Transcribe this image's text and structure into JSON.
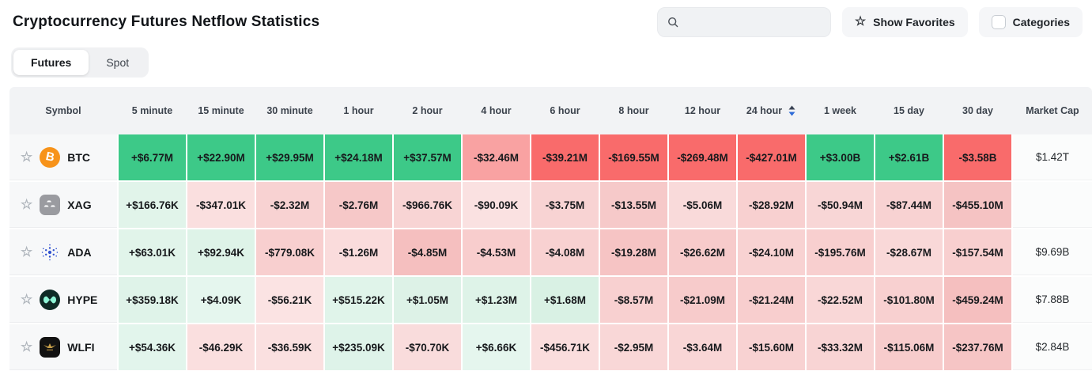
{
  "page": {
    "title": "Cryptocurrency Futures Netflow Statistics"
  },
  "controls": {
    "search": {
      "placeholder": "",
      "value": ""
    },
    "show_favorites_label": "Show Favorites",
    "categories_label": "Categories"
  },
  "tabs": [
    {
      "label": "Futures",
      "active": true
    },
    {
      "label": "Spot",
      "active": false
    }
  ],
  "table": {
    "columns": [
      "Symbol",
      "5 minute",
      "15 minute",
      "30 minute",
      "1 hour",
      "2 hour",
      "4 hour",
      "6 hour",
      "8 hour",
      "12 hour",
      "24 hour",
      "1 week",
      "15 day",
      "30 day",
      "Market Cap"
    ],
    "sorted_column": "24 hour",
    "sort_direction": "desc",
    "sort_icon_colors": {
      "up": "#3a4254",
      "down": "#2e6bd8"
    },
    "rows": [
      {
        "symbol": "BTC",
        "icon": "btc",
        "market_cap": "$1.42T",
        "cells": [
          {
            "v": "+$6.77M",
            "bg": "#3dc988"
          },
          {
            "v": "+$22.90M",
            "bg": "#3dc988"
          },
          {
            "v": "+$29.95M",
            "bg": "#3dc988"
          },
          {
            "v": "+$24.18M",
            "bg": "#3dc988"
          },
          {
            "v": "+$37.57M",
            "bg": "#3dc988"
          },
          {
            "v": "-$32.46M",
            "bg": "#f9a2a2"
          },
          {
            "v": "-$39.21M",
            "bg": "#f96b6b"
          },
          {
            "v": "-$169.55M",
            "bg": "#f96b6b"
          },
          {
            "v": "-$269.48M",
            "bg": "#f96b6b"
          },
          {
            "v": "-$427.01M",
            "bg": "#f96b6b"
          },
          {
            "v": "+$3.00B",
            "bg": "#3dc988"
          },
          {
            "v": "+$2.61B",
            "bg": "#3dc988"
          },
          {
            "v": "-$3.58B",
            "bg": "#f96b6b"
          }
        ]
      },
      {
        "symbol": "XAG",
        "icon": "xag",
        "market_cap": "",
        "cells": [
          {
            "v": "+$166.76K",
            "bg": "#e1f4ea"
          },
          {
            "v": "-$347.01K",
            "bg": "#fadfdf"
          },
          {
            "v": "-$2.32M",
            "bg": "#f8d2d2"
          },
          {
            "v": "-$2.76M",
            "bg": "#f6c8c8"
          },
          {
            "v": "-$966.76K",
            "bg": "#f8d4d4"
          },
          {
            "v": "-$90.09K",
            "bg": "#fae1e1"
          },
          {
            "v": "-$3.75M",
            "bg": "#f8d3d3"
          },
          {
            "v": "-$13.55M",
            "bg": "#f6c9c9"
          },
          {
            "v": "-$5.06M",
            "bg": "#f9dada"
          },
          {
            "v": "-$28.92M",
            "bg": "#f8d0d0"
          },
          {
            "v": "-$50.94M",
            "bg": "#f8d6d6"
          },
          {
            "v": "-$87.44M",
            "bg": "#f8d2d2"
          },
          {
            "v": "-$455.10M",
            "bg": "#f5c3c3"
          }
        ]
      },
      {
        "symbol": "ADA",
        "icon": "ada",
        "market_cap": "$9.69B",
        "cells": [
          {
            "v": "+$63.01K",
            "bg": "#e1f4ea"
          },
          {
            "v": "+$92.94K",
            "bg": "#def3e8"
          },
          {
            "v": "-$779.08K",
            "bg": "#f8cfcf"
          },
          {
            "v": "-$1.26M",
            "bg": "#fadcdc"
          },
          {
            "v": "-$4.85M",
            "bg": "#f5bfbf"
          },
          {
            "v": "-$4.53M",
            "bg": "#f8cdcd"
          },
          {
            "v": "-$4.08M",
            "bg": "#f8d1d1"
          },
          {
            "v": "-$19.28M",
            "bg": "#f6c4c4"
          },
          {
            "v": "-$26.62M",
            "bg": "#f7cbcb"
          },
          {
            "v": "-$24.10M",
            "bg": "#f8d2d2"
          },
          {
            "v": "-$195.76M",
            "bg": "#f8cfcf"
          },
          {
            "v": "-$28.67M",
            "bg": "#f9d8d8"
          },
          {
            "v": "-$157.54M",
            "bg": "#f8cfcf"
          }
        ]
      },
      {
        "symbol": "HYPE",
        "icon": "hype",
        "market_cap": "$7.88B",
        "cells": [
          {
            "v": "+$359.18K",
            "bg": "#dff3e9"
          },
          {
            "v": "+$4.09K",
            "bg": "#e5f6ee"
          },
          {
            "v": "-$56.21K",
            "bg": "#fbe3e3"
          },
          {
            "v": "+$515.22K",
            "bg": "#e0f4ea"
          },
          {
            "v": "+$1.05M",
            "bg": "#ddf2e7"
          },
          {
            "v": "+$1.23M",
            "bg": "#def3e8"
          },
          {
            "v": "+$1.68M",
            "bg": "#d9f1e4"
          },
          {
            "v": "-$8.57M",
            "bg": "#f8d0d0"
          },
          {
            "v": "-$21.09M",
            "bg": "#f7cbcb"
          },
          {
            "v": "-$21.24M",
            "bg": "#f8cece"
          },
          {
            "v": "-$22.52M",
            "bg": "#f9d7d7"
          },
          {
            "v": "-$101.80M",
            "bg": "#f8d0d0"
          },
          {
            "v": "-$459.24M",
            "bg": "#f5bfbf"
          }
        ]
      },
      {
        "symbol": "WLFI",
        "icon": "wlfi",
        "market_cap": "$2.84B",
        "cells": [
          {
            "v": "+$54.36K",
            "bg": "#e2f5ec"
          },
          {
            "v": "-$46.29K",
            "bg": "#fadfdf"
          },
          {
            "v": "-$36.59K",
            "bg": "#fae0e0"
          },
          {
            "v": "+$235.09K",
            "bg": "#def3e9"
          },
          {
            "v": "-$70.70K",
            "bg": "#f9dcdc"
          },
          {
            "v": "+$6.66K",
            "bg": "#e5f6ee"
          },
          {
            "v": "-$456.71K",
            "bg": "#fadddd"
          },
          {
            "v": "-$2.95M",
            "bg": "#f9d7d7"
          },
          {
            "v": "-$3.64M",
            "bg": "#f9d6d6"
          },
          {
            "v": "-$15.60M",
            "bg": "#f8d2d2"
          },
          {
            "v": "-$33.32M",
            "bg": "#f8d4d4"
          },
          {
            "v": "-$115.06M",
            "bg": "#f7cccc"
          },
          {
            "v": "-$237.76M",
            "bg": "#f6c5c5"
          }
        ]
      }
    ],
    "partial_next_row_colors": [
      "#c9ecd9",
      "#d5efe1",
      "#d7f0e2",
      "#ef9595",
      "#f3abab",
      "#f3b3b3",
      "#f7caca",
      "#f7cccc",
      "#f7cccc",
      "#f7cccc",
      "#f6c6c6",
      "#ddf2e7",
      "#f6bcbc"
    ],
    "coin_colors": {
      "btc": "#f7931a",
      "xag": "#9a9ba0",
      "ada": "#2f50d0",
      "hype_bg": "#0f2b26",
      "hype_fg": "#8ef5d6",
      "wlfi_bg": "#121212",
      "wlfi_fg": "#c9a14b"
    }
  }
}
